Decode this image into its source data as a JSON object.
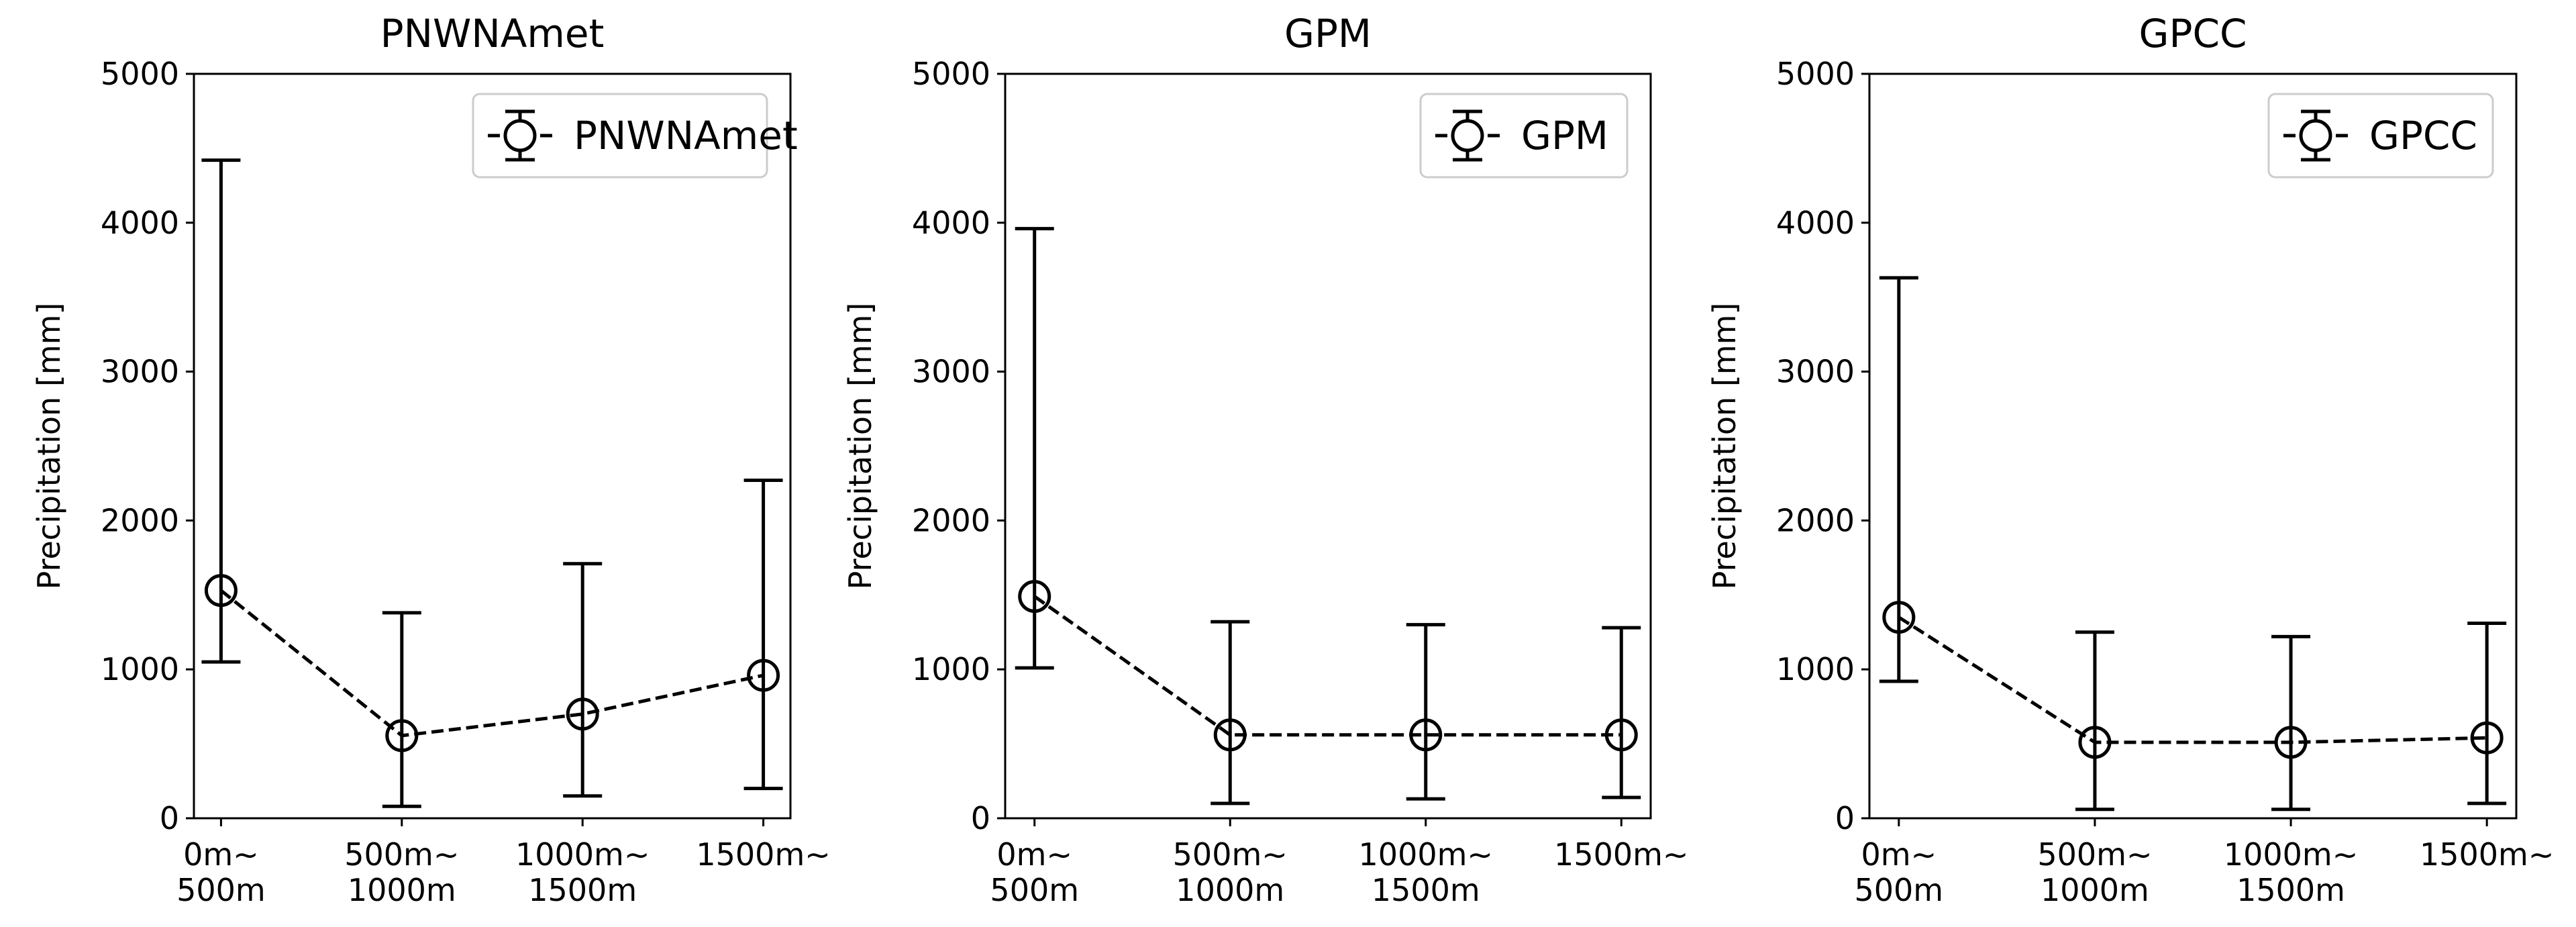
{
  "chart_data": [
    {
      "type": "line",
      "title": "PNWNAmet",
      "ylabel": "Precipitation [mm]",
      "categories": [
        "0m~\n500m",
        "500m~\n1000m",
        "1000m~\n1500m",
        "1500m~"
      ],
      "series": [
        {
          "name": "PNWNAmet",
          "color": "#000000",
          "values": [
            1530,
            555,
            700,
            960
          ],
          "lower": [
            1050,
            80,
            150,
            200
          ],
          "upper": [
            4420,
            1380,
            1710,
            2270
          ]
        }
      ],
      "ylim": [
        0,
        5000
      ],
      "yticks": [
        0,
        1000,
        2000,
        3000,
        4000,
        5000
      ],
      "legend": "upper right"
    },
    {
      "type": "line",
      "title": "GPM",
      "ylabel": "Precipitation [mm]",
      "categories": [
        "0m~\n500m",
        "500m~\n1000m",
        "1000m~\n1500m",
        "1500m~"
      ],
      "series": [
        {
          "name": "GPM",
          "color": "#000000",
          "values": [
            1490,
            560,
            560,
            560
          ],
          "lower": [
            1010,
            100,
            130,
            140
          ],
          "upper": [
            3960,
            1320,
            1300,
            1280
          ]
        }
      ],
      "ylim": [
        0,
        5000
      ],
      "yticks": [
        0,
        1000,
        2000,
        3000,
        4000,
        5000
      ],
      "legend": "upper right"
    },
    {
      "type": "line",
      "title": "GPCC",
      "ylabel": "Precipitation [mm]",
      "categories": [
        "0m~\n500m",
        "500m~\n1000m",
        "1000m~\n1500m",
        "1500m~"
      ],
      "series": [
        {
          "name": "GPCC",
          "color": "#000000",
          "values": [
            1350,
            510,
            510,
            540
          ],
          "lower": [
            920,
            60,
            60,
            100
          ],
          "upper": [
            3630,
            1250,
            1220,
            1310
          ]
        }
      ],
      "ylim": [
        0,
        5000
      ],
      "yticks": [
        0,
        1000,
        2000,
        3000,
        4000,
        5000
      ],
      "legend": "upper right"
    }
  ]
}
